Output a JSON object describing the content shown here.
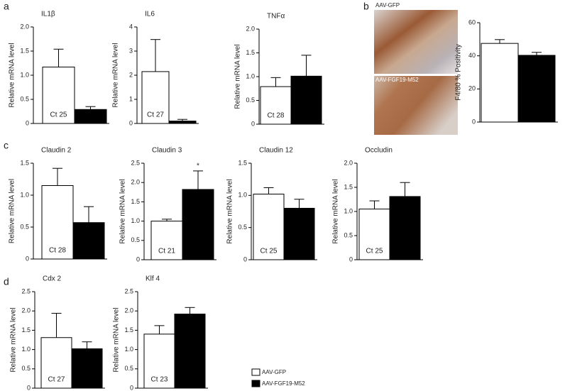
{
  "panels": [
    "a",
    "b",
    "c",
    "d"
  ],
  "images": [
    "AAV-GFP",
    "AAV-FGF19-M52"
  ],
  "legend": [
    "AAV-GFP",
    "AAV-FGF19-M52"
  ],
  "bar_colors": [
    "#ffffff",
    "#000000"
  ],
  "chart_data": [
    {
      "type": "bar",
      "title": "IL1β",
      "ylabel": "Relative mRNA level",
      "annotation": "Ct 25",
      "values": [
        1.17,
        0.29
      ],
      "errors": [
        0.37,
        0.06
      ],
      "ylim": [
        0,
        2
      ],
      "yticks": [
        0,
        0.5,
        {
          "value": 1,
          "label": "1.0"
        },
        1.5,
        {
          "value": 2,
          "label": "2.0"
        }
      ]
    },
    {
      "type": "bar",
      "title": "IL6",
      "ylabel": "Relative mRNA level",
      "annotation": "Ct 27",
      "values": [
        2.15,
        0.1
      ],
      "errors": [
        1.33,
        0.07
      ],
      "ylim": [
        0,
        4
      ],
      "yticks": [
        0,
        1,
        2,
        3,
        4
      ]
    },
    {
      "type": "bar",
      "title": "TNFα",
      "ylabel": "Relative mRNA level",
      "annotation": "Ct 28",
      "values": [
        0.79,
        1.01
      ],
      "errors": [
        0.19,
        0.44
      ],
      "ylim": [
        0,
        2
      ],
      "yticks": [
        0,
        0.5,
        {
          "value": 1,
          "label": "1.0"
        },
        1.5,
        {
          "value": 2,
          "label": "2.0"
        }
      ]
    },
    {
      "type": "bar",
      "ylabel": "F4/80 % Positivity",
      "values": [
        47.5,
        40.3
      ],
      "errors": [
        2.3,
        1.8
      ],
      "ylim": [
        0,
        60
      ],
      "yticks": [
        0,
        20,
        40,
        60
      ]
    },
    {
      "type": "bar",
      "title": "Claudin 2",
      "ylabel": "Relative mRNA level",
      "annotation": "Ct 28",
      "values": [
        1.15,
        0.57
      ],
      "errors": [
        0.27,
        0.25
      ],
      "ylim": [
        0,
        1.5
      ],
      "yticks": [
        0,
        0.5,
        {
          "value": 1,
          "label": "1.0"
        },
        1.5
      ]
    },
    {
      "type": "bar",
      "title": "Claudin 3",
      "ylabel": "Relative mRNA level",
      "annotation": "Ct 21",
      "values": [
        1.0,
        1.82
      ],
      "errors": [
        0.05,
        0.48
      ],
      "ylim": [
        0,
        2.5
      ],
      "yticks": [
        0,
        0.5,
        {
          "value": 1,
          "label": "1.0"
        },
        1.5,
        {
          "value": 2,
          "label": "2.0"
        },
        2.5
      ],
      "marks": [
        {
          "text": "*",
          "bar": 1
        }
      ]
    },
    {
      "type": "bar",
      "title": "Claudin 12",
      "ylabel": "Relative mRNA level",
      "annotation": "Ct 25",
      "values": [
        1.02,
        0.8
      ],
      "errors": [
        0.1,
        0.14
      ],
      "ylim": [
        0,
        1.5
      ],
      "yticks": [
        0,
        0.5,
        {
          "value": 1,
          "label": "1.0"
        },
        1.5
      ]
    },
    {
      "type": "bar",
      "title": "Occludin",
      "ylabel": "Relative mRNA level",
      "annotation": "Ct 25",
      "values": [
        1.05,
        1.31
      ],
      "errors": [
        0.17,
        0.29
      ],
      "ylim": [
        0,
        2
      ],
      "yticks": [
        0,
        0.5,
        {
          "value": 1,
          "label": "1.0"
        },
        1.5,
        {
          "value": 2,
          "label": "2.0"
        }
      ]
    },
    {
      "type": "bar",
      "title": "Cdx 2",
      "ylabel": "Relative mRNA level",
      "annotation": "Ct 27",
      "values": [
        1.31,
        1.02
      ],
      "errors": [
        0.63,
        0.18
      ],
      "ylim": [
        0,
        2.5
      ],
      "yticks": [
        0,
        0.5,
        {
          "value": 1,
          "label": "1.0"
        },
        1.5,
        {
          "value": 2,
          "label": "2.0"
        },
        2.5
      ]
    },
    {
      "type": "bar",
      "title": "Klf 4",
      "ylabel": "Relative mRNA level",
      "annotation": "Ct 23",
      "values": [
        1.4,
        1.92
      ],
      "errors": [
        0.22,
        0.17
      ],
      "ylim": [
        0,
        2.5
      ],
      "yticks": [
        0,
        0.5,
        {
          "value": 1,
          "label": "1.0"
        },
        1.5,
        {
          "value": 2,
          "label": "2.0"
        },
        2.5
      ]
    }
  ]
}
